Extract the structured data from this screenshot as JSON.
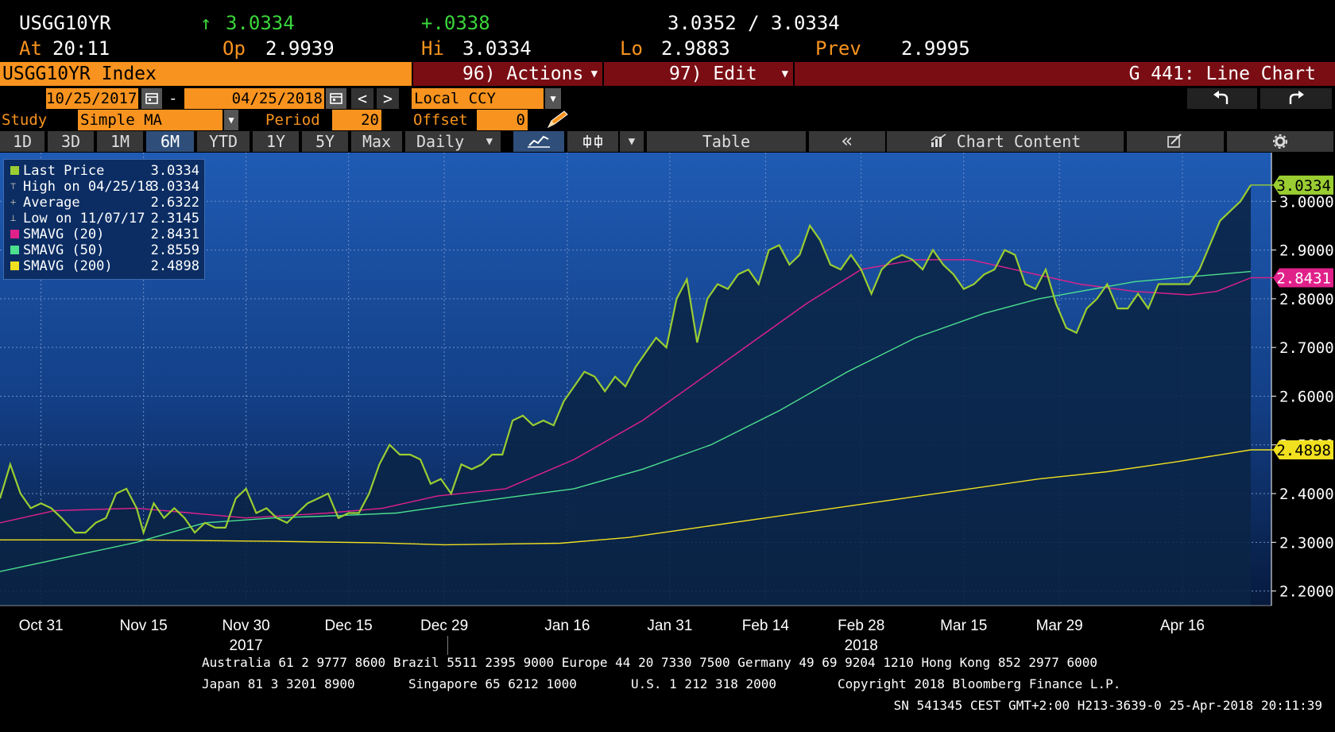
{
  "quote": {
    "ticker": "USGG10YR",
    "arrow": "↑",
    "last": "3.0334",
    "change": "+.0338",
    "bid_ask": "3.0352 / 3.0334",
    "at_label": "At",
    "time": "20:11",
    "op_label": "Op",
    "op": "2.9939",
    "hi_label": "Hi",
    "hi": "3.0334",
    "lo_label": "Lo",
    "lo": "2.9883",
    "prev_label": "Prev",
    "prev": "2.9995"
  },
  "titlebar": {
    "security": "USGG10YR Index",
    "actions": "96) Actions",
    "edit": "97) Edit",
    "function": "G 441: Line Chart"
  },
  "dates": {
    "start": "10/25/2017",
    "sep": "-",
    "end": "04/25/2018",
    "currency": "Local CCY",
    "prev_arrow": "<",
    "next_arrow": ">"
  },
  "study": {
    "label": "Study",
    "value": "Simple MA",
    "period_label": "Period",
    "period": "20",
    "offset_label": "Offset",
    "offset": "0"
  },
  "toolbar": {
    "ranges": [
      "1D",
      "3D",
      "1M",
      "6M",
      "YTD",
      "1Y",
      "5Y",
      "Max"
    ],
    "active_range": "6M",
    "frequency": "Daily",
    "table": "Table",
    "collapse": "«",
    "chart_content": "Chart Content"
  },
  "legend": [
    {
      "name": "Last Price",
      "value": "3.0334",
      "color": "#9acd32"
    },
    {
      "name": "High on 04/25/18",
      "value": "3.0334",
      "color": ""
    },
    {
      "name": "Average",
      "value": "2.6322",
      "color": ""
    },
    {
      "name": "Low on 11/07/17",
      "value": "2.3145",
      "color": ""
    },
    {
      "name": "SMAVG (20)",
      "value": "2.8431",
      "color": "#e0218a"
    },
    {
      "name": "SMAVG (50)",
      "value": "2.8559",
      "color": "#4ce08f"
    },
    {
      "name": "SMAVG (200)",
      "value": "2.4898",
      "color": "#f0e020"
    }
  ],
  "chart_data": {
    "type": "line",
    "x_ticks": [
      {
        "label": "Oct 31",
        "d": 6
      },
      {
        "label": "Nov 15",
        "d": 21
      },
      {
        "label": "Nov 30",
        "d": 36
      },
      {
        "label": "Dec 15",
        "d": 51
      },
      {
        "label": "Dec 29",
        "d": 65
      },
      {
        "label": "Jan 16",
        "d": 83
      },
      {
        "label": "Jan 31",
        "d": 98
      },
      {
        "label": "Feb 14",
        "d": 112
      },
      {
        "label": "Feb 28",
        "d": 126
      },
      {
        "label": "Mar 15",
        "d": 141
      },
      {
        "label": "Mar 29",
        "d": 155
      },
      {
        "label": "Apr 16",
        "d": 173
      }
    ],
    "year_labels": [
      {
        "label": "2017",
        "d": 36
      },
      {
        "label": "2018",
        "d": 126
      }
    ],
    "ylim": [
      2.17,
      3.1
    ],
    "y_ticks": [
      "2.2000",
      "2.3000",
      "2.4000",
      "2.5000",
      "2.6000",
      "2.7000",
      "2.8000",
      "2.9000",
      "3.0000"
    ],
    "value_tags": [
      {
        "label": "3.0334",
        "value": 3.0334,
        "color": "#9acd32"
      },
      {
        "label": "2.8431",
        "value": 2.8431,
        "color": "#e0218a"
      },
      {
        "label": "2.4898",
        "value": 2.4898,
        "color": "#f0e020"
      }
    ],
    "series": [
      {
        "name": "Last Price",
        "color": "#9acd32",
        "points": [
          [
            0,
            2.39
          ],
          [
            1.5,
            2.46
          ],
          [
            3,
            2.4
          ],
          [
            4.5,
            2.37
          ],
          [
            6,
            2.38
          ],
          [
            7.5,
            2.37
          ],
          [
            9,
            2.35
          ],
          [
            11,
            2.32
          ],
          [
            12.5,
            2.32
          ],
          [
            14,
            2.34
          ],
          [
            15.5,
            2.35
          ],
          [
            17,
            2.4
          ],
          [
            18.5,
            2.41
          ],
          [
            20,
            2.37
          ],
          [
            21,
            2.32
          ],
          [
            22.5,
            2.38
          ],
          [
            24,
            2.35
          ],
          [
            25.5,
            2.37
          ],
          [
            27,
            2.35
          ],
          [
            28.5,
            2.32
          ],
          [
            30,
            2.34
          ],
          [
            31.5,
            2.33
          ],
          [
            33,
            2.33
          ],
          [
            34.5,
            2.39
          ],
          [
            36,
            2.41
          ],
          [
            37.5,
            2.36
          ],
          [
            39,
            2.37
          ],
          [
            40.5,
            2.35
          ],
          [
            42,
            2.34
          ],
          [
            43.5,
            2.36
          ],
          [
            45,
            2.38
          ],
          [
            46.5,
            2.39
          ],
          [
            48,
            2.4
          ],
          [
            49.5,
            2.35
          ],
          [
            51,
            2.36
          ],
          [
            52.5,
            2.36
          ],
          [
            54,
            2.4
          ],
          [
            55.5,
            2.46
          ],
          [
            57,
            2.5
          ],
          [
            58.5,
            2.48
          ],
          [
            60,
            2.48
          ],
          [
            61.5,
            2.47
          ],
          [
            63,
            2.42
          ],
          [
            64.5,
            2.43
          ],
          [
            66,
            2.4
          ],
          [
            67.5,
            2.46
          ],
          [
            69,
            2.45
          ],
          [
            70.5,
            2.46
          ],
          [
            72,
            2.48
          ],
          [
            73.5,
            2.48
          ],
          [
            75,
            2.55
          ],
          [
            76.5,
            2.56
          ],
          [
            78,
            2.54
          ],
          [
            79.5,
            2.55
          ],
          [
            81,
            2.54
          ],
          [
            82.5,
            2.59
          ],
          [
            84,
            2.62
          ],
          [
            85.5,
            2.65
          ],
          [
            87,
            2.64
          ],
          [
            88.5,
            2.61
          ],
          [
            90,
            2.64
          ],
          [
            91.5,
            2.62
          ],
          [
            93,
            2.66
          ],
          [
            94.5,
            2.69
          ],
          [
            96,
            2.72
          ],
          [
            97.5,
            2.7
          ],
          [
            99,
            2.8
          ],
          [
            100.5,
            2.84
          ],
          [
            102,
            2.71
          ],
          [
            103.5,
            2.8
          ],
          [
            105,
            2.83
          ],
          [
            106.5,
            2.82
          ],
          [
            108,
            2.85
          ],
          [
            109.5,
            2.86
          ],
          [
            111,
            2.83
          ],
          [
            112.5,
            2.9
          ],
          [
            114,
            2.91
          ],
          [
            115.5,
            2.87
          ],
          [
            117,
            2.89
          ],
          [
            118.5,
            2.95
          ],
          [
            120,
            2.92
          ],
          [
            121.5,
            2.87
          ],
          [
            123,
            2.86
          ],
          [
            124.5,
            2.89
          ],
          [
            126,
            2.86
          ],
          [
            127.5,
            2.81
          ],
          [
            129,
            2.86
          ],
          [
            130.5,
            2.88
          ],
          [
            132,
            2.89
          ],
          [
            133.5,
            2.88
          ],
          [
            135,
            2.86
          ],
          [
            136.5,
            2.9
          ],
          [
            138,
            2.87
          ],
          [
            139.5,
            2.85
          ],
          [
            141,
            2.82
          ],
          [
            142.5,
            2.83
          ],
          [
            144,
            2.85
          ],
          [
            145.5,
            2.86
          ],
          [
            147,
            2.9
          ],
          [
            148.5,
            2.89
          ],
          [
            150,
            2.83
          ],
          [
            151.5,
            2.82
          ],
          [
            153,
            2.86
          ],
          [
            154.5,
            2.79
          ],
          [
            156,
            2.74
          ],
          [
            157.5,
            2.73
          ],
          [
            159,
            2.78
          ],
          [
            160.5,
            2.8
          ],
          [
            162,
            2.83
          ],
          [
            163.5,
            2.78
          ],
          [
            165,
            2.78
          ],
          [
            166.5,
            2.81
          ],
          [
            168,
            2.78
          ],
          [
            169.5,
            2.83
          ],
          [
            171,
            2.83
          ],
          [
            172.5,
            2.83
          ],
          [
            174,
            2.83
          ],
          [
            175.5,
            2.86
          ],
          [
            177,
            2.91
          ],
          [
            178.5,
            2.96
          ],
          [
            180,
            2.98
          ],
          [
            181.5,
            3.0
          ],
          [
            183,
            3.0334
          ]
        ]
      },
      {
        "name": "SMAVG (20)",
        "color": "#e0218a",
        "points": [
          [
            0,
            2.34
          ],
          [
            8,
            2.365
          ],
          [
            20,
            2.37
          ],
          [
            28,
            2.36
          ],
          [
            36,
            2.35
          ],
          [
            48,
            2.36
          ],
          [
            56,
            2.37
          ],
          [
            64,
            2.395
          ],
          [
            74,
            2.41
          ],
          [
            84,
            2.47
          ],
          [
            94,
            2.55
          ],
          [
            102,
            2.63
          ],
          [
            110,
            2.71
          ],
          [
            118,
            2.79
          ],
          [
            126,
            2.86
          ],
          [
            134,
            2.88
          ],
          [
            142,
            2.88
          ],
          [
            150,
            2.855
          ],
          [
            158,
            2.83
          ],
          [
            166,
            2.815
          ],
          [
            174,
            2.808
          ],
          [
            178,
            2.815
          ],
          [
            183,
            2.8431
          ]
        ]
      },
      {
        "name": "SMAVG (50)",
        "color": "#4ce08f",
        "points": [
          [
            0,
            2.24
          ],
          [
            10,
            2.27
          ],
          [
            20,
            2.3
          ],
          [
            30,
            2.34
          ],
          [
            40,
            2.35
          ],
          [
            50,
            2.355
          ],
          [
            58,
            2.36
          ],
          [
            68,
            2.38
          ],
          [
            76,
            2.395
          ],
          [
            84,
            2.41
          ],
          [
            94,
            2.45
          ],
          [
            104,
            2.5
          ],
          [
            114,
            2.57
          ],
          [
            124,
            2.65
          ],
          [
            134,
            2.72
          ],
          [
            144,
            2.77
          ],
          [
            152,
            2.8
          ],
          [
            158,
            2.815
          ],
          [
            166,
            2.835
          ],
          [
            174,
            2.845
          ],
          [
            183,
            2.8559
          ]
        ]
      },
      {
        "name": "SMAVG (200)",
        "color": "#f0e020",
        "points": [
          [
            0,
            2.305
          ],
          [
            20,
            2.305
          ],
          [
            40,
            2.302
          ],
          [
            55,
            2.299
          ],
          [
            65,
            2.295
          ],
          [
            82,
            2.298
          ],
          [
            92,
            2.31
          ],
          [
            102,
            2.33
          ],
          [
            112,
            2.35
          ],
          [
            122,
            2.37
          ],
          [
            132,
            2.39
          ],
          [
            142,
            2.41
          ],
          [
            152,
            2.43
          ],
          [
            162,
            2.445
          ],
          [
            172,
            2.465
          ],
          [
            183,
            2.4898
          ]
        ]
      }
    ]
  },
  "footer": {
    "line1": "Australia 61 2 9777 8600 Brazil 5511 2395 9000 Europe 44 20 7330 7500 Germany 49 69 9204 1210 Hong Kong 852 2977 6000",
    "line2_a": "Japan 81 3 3201 8900",
    "line2_b": "Singapore 65 6212 1000",
    "line2_c": "U.S. 1 212 318 2000",
    "line2_d": "Copyright 2018 Bloomberg Finance L.P.",
    "line3": "SN 541345 CEST GMT+2:00 H213-3639-0 25-Apr-2018 20:11:39"
  }
}
